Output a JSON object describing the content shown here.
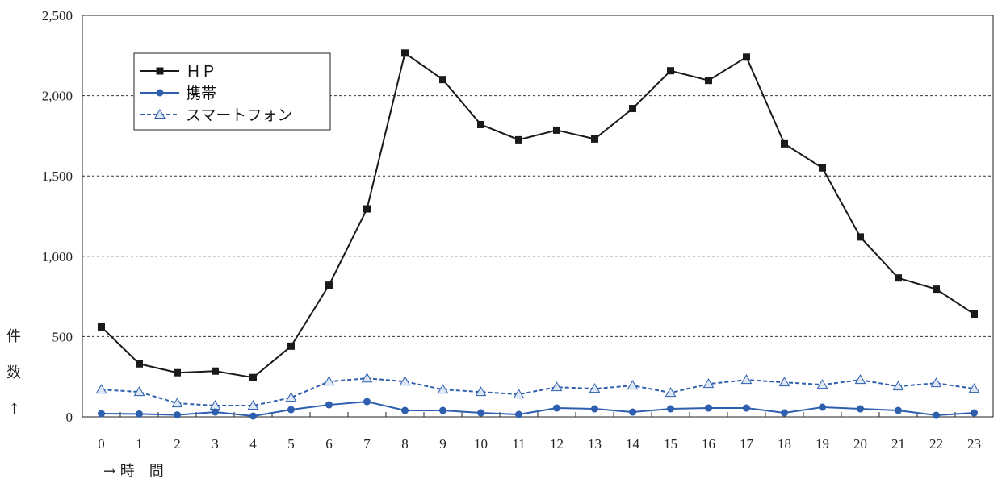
{
  "chart_data": {
    "type": "line",
    "categories": [
      "0",
      "1",
      "2",
      "3",
      "4",
      "5",
      "6",
      "7",
      "8",
      "9",
      "10",
      "11",
      "12",
      "13",
      "14",
      "15",
      "16",
      "17",
      "18",
      "19",
      "20",
      "21",
      "22",
      "23"
    ],
    "series": [
      {
        "name": "ＨＰ",
        "color": "#1a1a1a",
        "marker": "square",
        "dash": "solid",
        "values": [
          560,
          330,
          275,
          285,
          245,
          440,
          820,
          1295,
          2265,
          2100,
          1820,
          1725,
          1785,
          1730,
          1920,
          2155,
          2095,
          2240,
          1700,
          1550,
          1120,
          865,
          795,
          640
        ]
      },
      {
        "name": "携帯",
        "color": "#2e5fae",
        "marker": "circle",
        "dash": "solid",
        "values": [
          20,
          18,
          12,
          30,
          5,
          45,
          75,
          95,
          40,
          40,
          25,
          15,
          55,
          50,
          30,
          50,
          55,
          55,
          25,
          60,
          50,
          40,
          10,
          25
        ]
      },
      {
        "name": "スマートフォン",
        "color": "#2e5fae",
        "marker": "triangle",
        "dash": "dashed",
        "values": [
          170,
          155,
          85,
          70,
          70,
          120,
          220,
          240,
          220,
          170,
          155,
          140,
          185,
          175,
          195,
          150,
          205,
          230,
          215,
          200,
          230,
          190,
          210,
          175
        ]
      }
    ],
    "yticks": [
      "0",
      "500",
      "1,000",
      "1,500",
      "2,000",
      "2,500"
    ],
    "ylim": [
      0,
      2500
    ],
    "ylabel_chars": [
      "件",
      "数",
      "↑"
    ],
    "xlabel": "→ 時　間",
    "grid": "horizontal-dashed",
    "legend_position": "top-left"
  }
}
